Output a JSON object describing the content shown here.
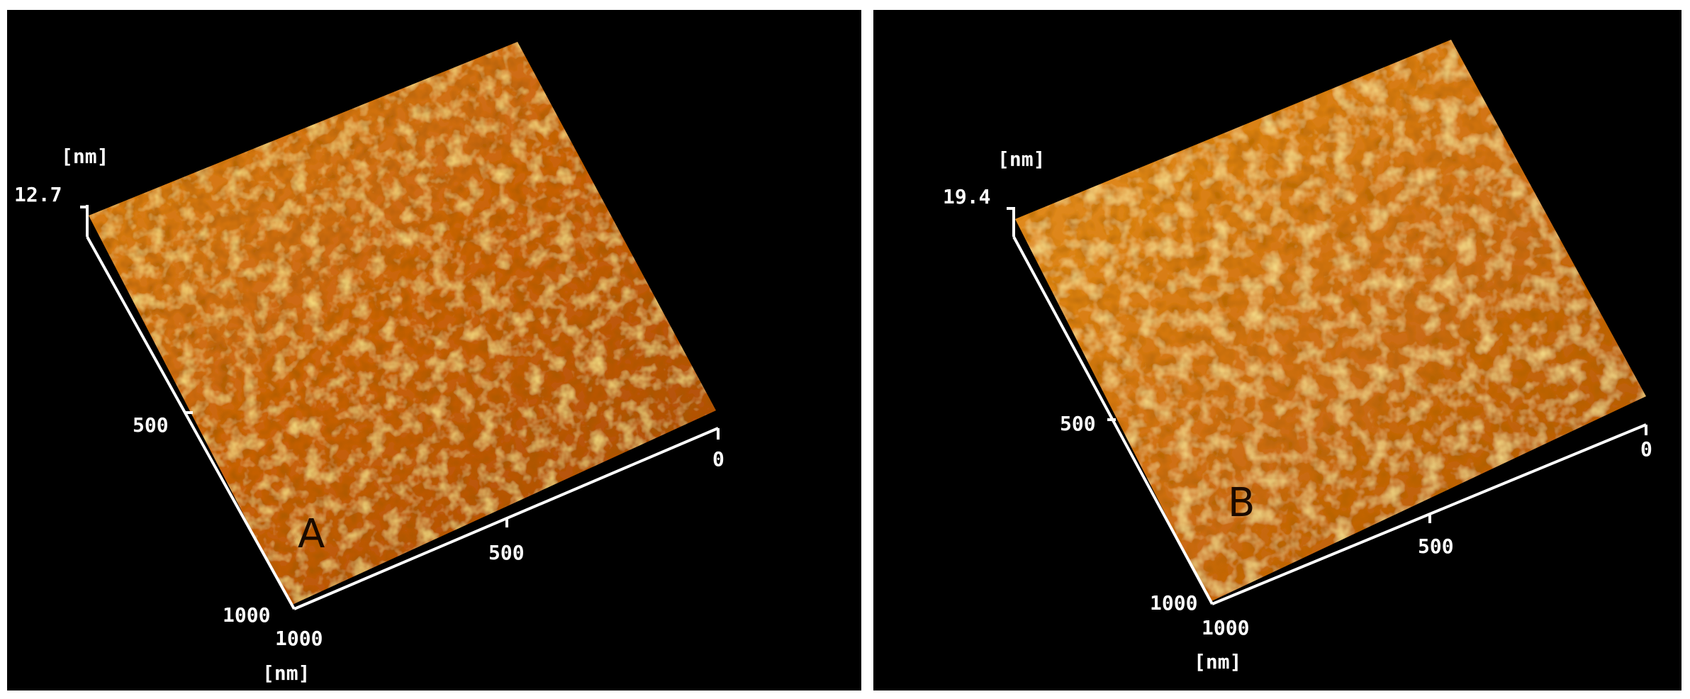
{
  "panels": [
    {
      "id": "A",
      "letter": "A",
      "z_unit": "[nm]",
      "z_max": "12.7",
      "y_mid": "500",
      "y_end": "1000",
      "x_start": "1000",
      "x_mid": "500",
      "x_zero": "0",
      "xy_unit": "[nm]"
    },
    {
      "id": "B",
      "letter": "B",
      "z_unit": "[nm]",
      "z_max": "19.4",
      "y_mid": "500",
      "y_end": "1000",
      "x_start": "1000",
      "x_mid": "500",
      "x_zero": "0",
      "xy_unit": "[nm]"
    }
  ],
  "colors": {
    "background": "#000000",
    "surface_dark": "#7a2a00",
    "surface_mid": "#d2700a",
    "surface_light": "#ffd23c",
    "axis": "#ffffff"
  }
}
